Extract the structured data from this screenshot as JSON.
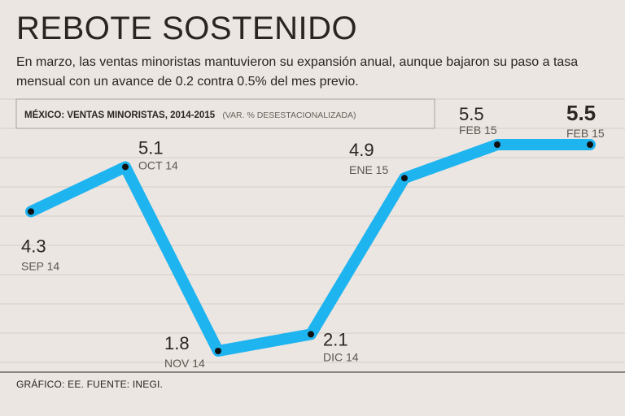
{
  "headline": "REBOTE SOSTENIDO",
  "subtitle": "En marzo, las ventas minoristas mantuvieron su expansión anual, aunque bajaron su paso a tasa mensual con un avance de 0.2 contra 0.5% del mes previo.",
  "footer": "GRÁFICO: EE. FUENTE: INEGI.",
  "colors": {
    "line": "#1eb4f0",
    "background": "#ebe6e1",
    "grid": "#d4cdc7",
    "text": "#2b2522"
  },
  "chart_data": {
    "type": "line",
    "title": "MÉXICO: VENTAS MINORISTAS, 2014-2015",
    "subtitle": "(VAR. % DESESTACIONALIZADA)",
    "xlabel": "",
    "ylabel": "",
    "ylim": [
      1.0,
      6.0
    ],
    "grid": true,
    "categories": [
      "SEP 14",
      "OCT 14",
      "NOV 14",
      "DIC 14",
      "ENE 15",
      "FEB 15",
      "FEB 15"
    ],
    "values": [
      4.3,
      5.1,
      1.8,
      2.1,
      4.9,
      5.5,
      5.5
    ],
    "value_labels": [
      "4.3",
      "5.1",
      "1.8",
      "2.1",
      "4.9",
      "5.5",
      "5.5"
    ]
  }
}
